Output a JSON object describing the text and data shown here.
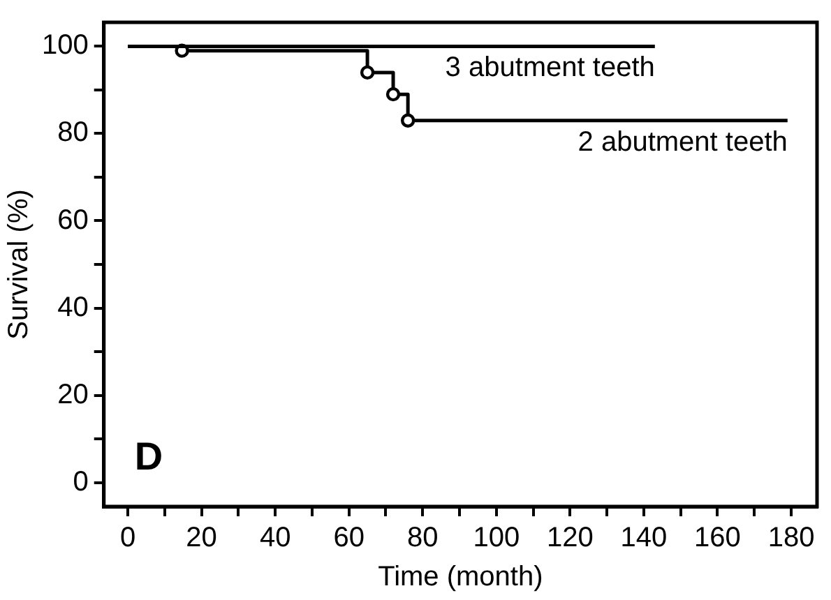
{
  "chart_data": {
    "type": "step",
    "xlabel": "Time (month)",
    "ylabel": "Survival (%)",
    "xlim": [
      -6.5,
      187
    ],
    "ylim": [
      -5.5,
      105.5
    ],
    "xticks": [
      0,
      {
        "value": 10,
        "label": null
      },
      20,
      {
        "value": 30,
        "label": null
      },
      40,
      {
        "value": 50,
        "label": null
      },
      60,
      {
        "value": 70,
        "label": null
      },
      80,
      {
        "value": 90,
        "label": null
      },
      100,
      {
        "value": 110,
        "label": null
      },
      120,
      {
        "value": 130,
        "label": null
      },
      140,
      {
        "value": 150,
        "label": null
      },
      160,
      {
        "value": 170,
        "label": null
      },
      180
    ],
    "yticks": [
      0,
      {
        "value": 10,
        "label": null
      },
      20,
      {
        "value": 30,
        "label": null
      },
      40,
      {
        "value": 50,
        "label": null
      },
      60,
      {
        "value": 70,
        "label": null
      },
      80,
      {
        "value": 90,
        "label": null
      },
      100
    ],
    "series": [
      {
        "name": "3 abutment teeth",
        "color": "#000000",
        "marker": "none",
        "x": [
          0,
          143
        ],
        "values": [
          100,
          100
        ]
      },
      {
        "name": "2 abutment teeth",
        "color": "#000000",
        "marker": "circle",
        "x": [
          0,
          14.7,
          65,
          72,
          76,
          179
        ],
        "values": [
          100,
          99,
          94,
          89,
          83,
          83
        ]
      }
    ],
    "annotations": [
      "D"
    ],
    "grid": false,
    "legend": false
  }
}
